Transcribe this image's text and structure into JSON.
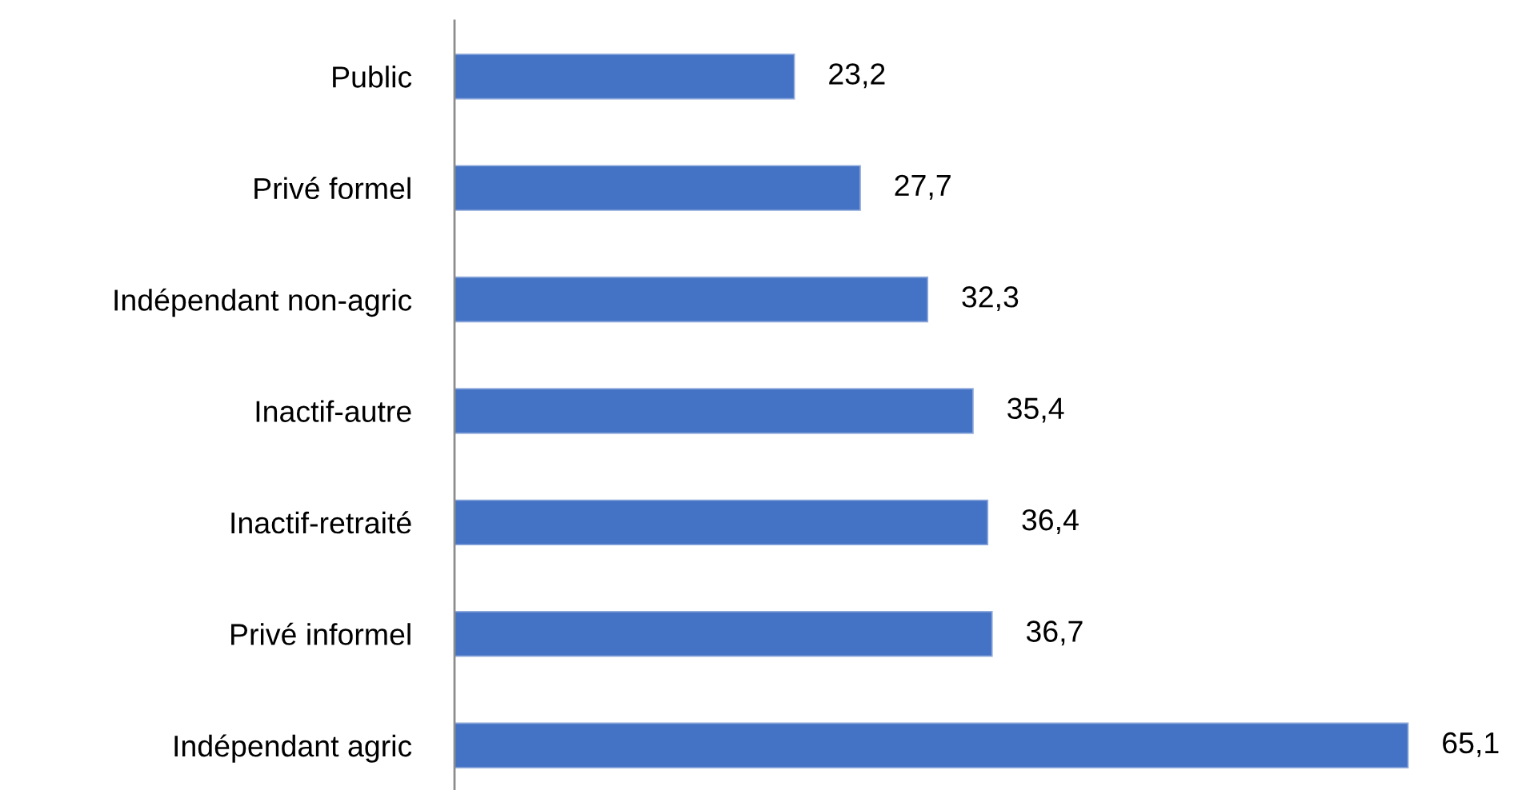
{
  "chart_data": {
    "type": "bar",
    "orientation": "horizontal",
    "categories": [
      "Public",
      "Privé formel",
      "Indépendant non-agric",
      "Inactif-autre",
      "Inactif-retraité",
      "Privé informel",
      "Indépendant agric"
    ],
    "values": [
      23.2,
      27.7,
      32.3,
      35.4,
      36.4,
      36.7,
      65.1
    ],
    "value_labels": [
      "23,2",
      "27,7",
      "32,3",
      "35,4",
      "36,4",
      "36,7",
      "65,1"
    ],
    "color": "#4472c4"
  }
}
